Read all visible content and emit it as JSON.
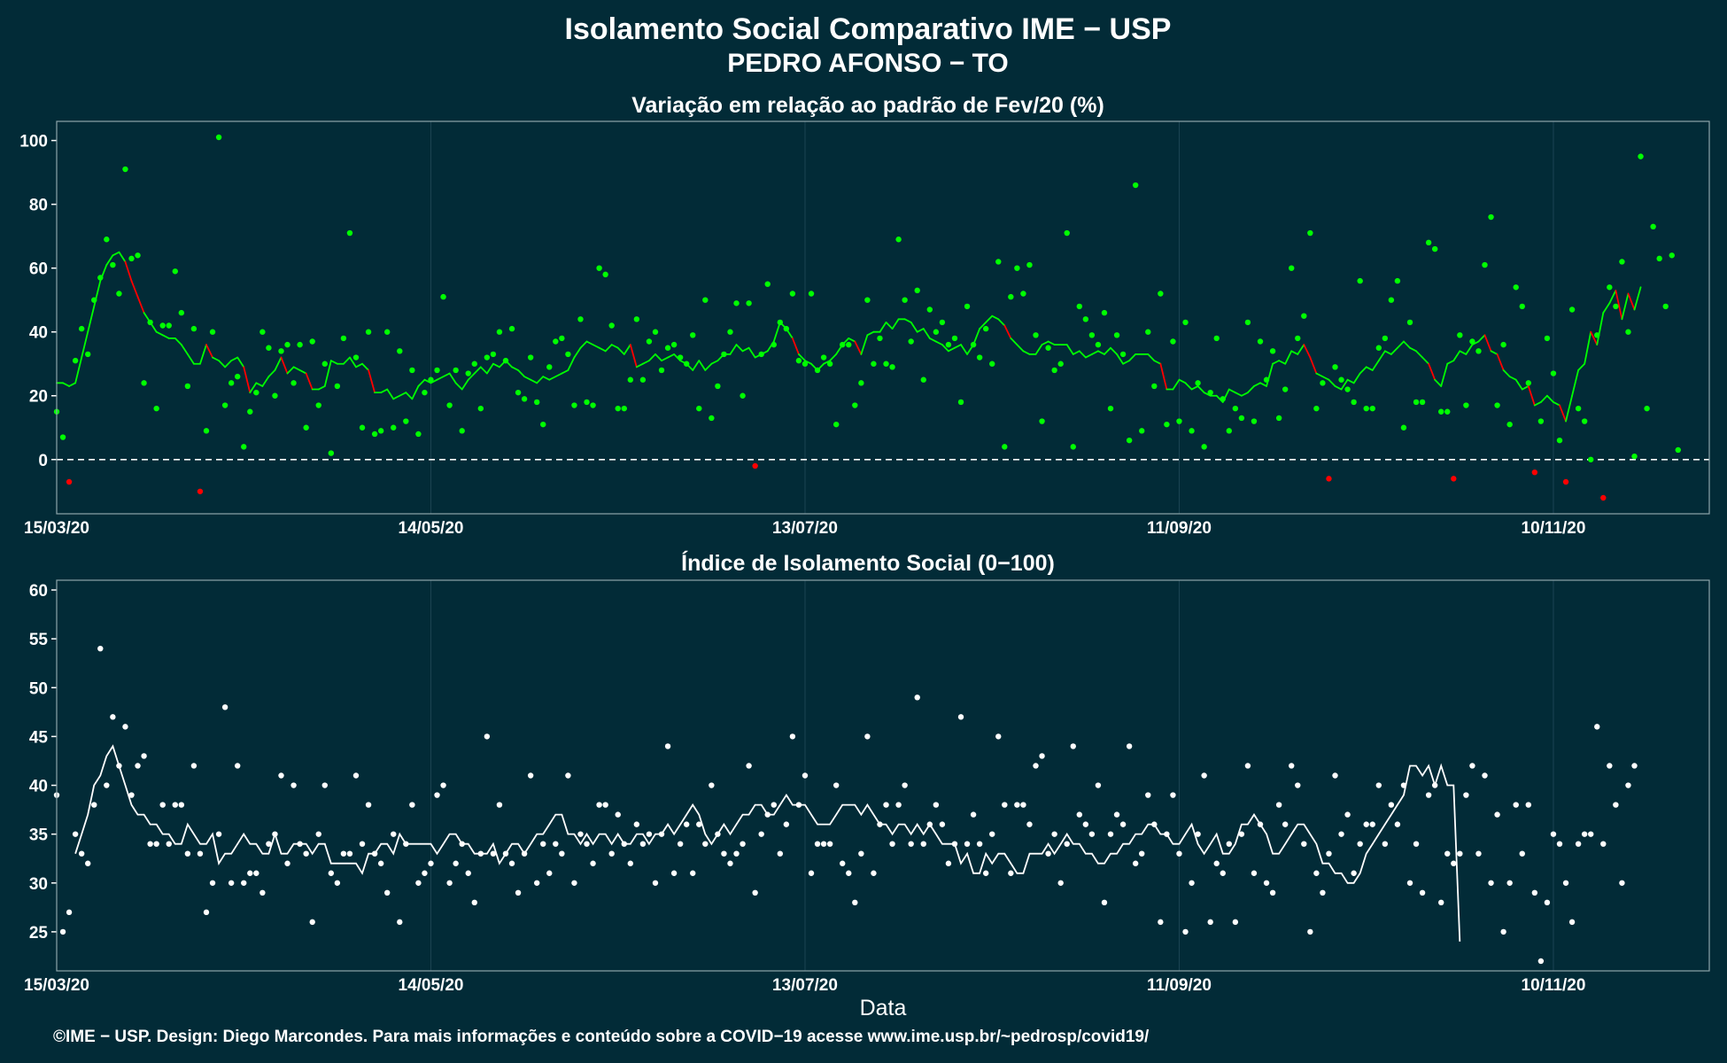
{
  "title_line1": "Isolamento Social Comparativo IME − USP",
  "title_line2": "PEDRO AFONSO − TO",
  "footer": "©IME − USP. Design: Diego Marcondes. Para mais informações e conteúdo sobre a COVID−19 acesse www.ime.usp.br/~pedrosp/covid19/",
  "colors": {
    "background": "#022b37",
    "panel_border": "#8fa5ab",
    "positive": "#00ff00",
    "negative": "#ff0000",
    "index": "#ffffff",
    "grid": "#1c4553"
  },
  "chart_data": [
    {
      "type": "scatter",
      "title": "Variação em relação ao padrão de Fev/20 (%)",
      "xlabel": "",
      "ylabel": "",
      "ylim": [
        -17,
        106
      ],
      "yticks": [
        0,
        20,
        40,
        60,
        80,
        100
      ],
      "xticks": [
        "15/03/20",
        "14/05/20",
        "13/07/20",
        "11/09/20",
        "10/11/20"
      ],
      "x_start": "2020-03-15",
      "x_end": "2020-12-05",
      "reference_line": 0,
      "legend": "none",
      "grid": true,
      "series": [
        {
          "style": "points",
          "x_start": "2020-03-15",
          "step_days": 1,
          "values": [
            15,
            7,
            -7,
            31,
            41,
            33,
            50,
            57,
            69,
            61,
            52,
            91,
            63,
            64,
            24,
            43,
            16,
            42,
            42,
            59,
            46,
            23,
            41,
            -10,
            9,
            40,
            101,
            17,
            24,
            26,
            4,
            15,
            21,
            40,
            35,
            20,
            34,
            36,
            24,
            36,
            10,
            37,
            17,
            30,
            2,
            23,
            38,
            71,
            32,
            10,
            40,
            8,
            9,
            40,
            10,
            34,
            12,
            28,
            8,
            21,
            25,
            28,
            51,
            17,
            28,
            9,
            27,
            30,
            16,
            32,
            33,
            40,
            31,
            41,
            21,
            19,
            32,
            18,
            11,
            29,
            37,
            38,
            33,
            17,
            44,
            18,
            17,
            60,
            58,
            42,
            16,
            16,
            25,
            44,
            25,
            37,
            40,
            28,
            35,
            36,
            32,
            30,
            39,
            16,
            50,
            13,
            23,
            33,
            40,
            49,
            20,
            49,
            -2,
            33,
            55,
            36,
            43,
            41,
            52,
            31,
            30,
            52,
            28,
            32,
            30,
            11,
            36,
            36,
            17,
            24,
            50,
            30,
            38,
            30,
            29,
            69,
            50,
            37,
            53,
            25,
            47,
            40,
            43,
            36,
            38,
            18,
            48,
            36,
            32,
            41,
            30,
            62,
            4,
            51,
            60,
            52,
            61,
            39,
            12,
            35,
            28,
            30,
            71,
            4,
            48,
            44,
            39,
            36,
            46,
            16,
            39,
            33,
            6,
            86,
            9,
            40,
            23,
            52,
            11,
            37,
            12,
            43,
            9,
            24,
            4,
            21,
            38,
            19,
            9,
            16,
            13,
            43,
            12,
            37,
            25,
            34,
            13,
            22,
            60,
            38,
            45,
            71,
            16,
            24,
            -6,
            29,
            25,
            22,
            18,
            56,
            16,
            16,
            35,
            38,
            50,
            56,
            10,
            43,
            18,
            18,
            68,
            66,
            15,
            15,
            -6,
            39,
            17,
            37,
            34,
            61,
            76,
            17,
            36,
            11,
            54,
            48,
            24,
            -4,
            12,
            38,
            27,
            6,
            -7,
            47,
            16,
            12,
            0,
            39,
            -12,
            54,
            48,
            62,
            40,
            1,
            95,
            16,
            73,
            63,
            48,
            64,
            3
          ]
        },
        {
          "style": "line",
          "name": "",
          "x_start": "2020-03-15",
          "step_days": 1,
          "values": [
            24,
            24,
            23,
            24,
            32,
            40,
            48,
            56,
            61,
            64,
            65,
            62,
            56,
            51,
            46,
            43,
            40,
            39,
            38,
            38,
            36,
            33,
            30,
            30,
            36,
            32,
            31,
            29,
            31,
            32,
            29,
            21,
            24,
            23,
            26,
            28,
            32,
            27,
            29,
            28,
            27,
            22,
            22,
            23,
            31,
            30,
            30,
            32,
            29,
            30,
            28,
            21,
            21,
            22,
            19,
            20,
            21,
            19,
            23,
            25,
            24,
            25,
            26,
            27,
            24,
            22,
            25,
            27,
            29,
            27,
            30,
            29,
            31,
            29,
            28,
            26,
            25,
            24,
            26,
            25,
            26,
            27,
            28,
            32,
            35,
            37,
            36,
            35,
            34,
            36,
            35,
            33,
            36,
            29,
            30,
            31,
            33,
            31,
            32,
            33,
            31,
            30,
            28,
            31,
            28,
            30,
            31,
            33,
            33,
            36,
            34,
            35,
            32,
            33,
            34,
            37,
            43,
            41,
            38,
            33,
            31,
            30,
            28,
            30,
            31,
            33,
            36,
            38,
            37,
            33,
            39,
            40,
            40,
            43,
            41,
            44,
            44,
            43,
            40,
            41,
            38,
            37,
            36,
            34,
            35,
            36,
            33,
            36,
            41,
            43,
            45,
            44,
            42,
            38,
            36,
            34,
            33,
            33,
            36,
            37,
            36,
            36,
            36,
            33,
            34,
            32,
            33,
            34,
            33,
            35,
            33,
            30,
            31,
            33,
            33,
            33,
            31,
            30,
            22,
            22,
            25,
            24,
            22,
            23,
            21,
            20,
            20,
            18,
            22,
            21,
            20,
            21,
            23,
            24,
            23,
            30,
            31,
            30,
            34,
            33,
            36,
            32,
            27,
            26,
            25,
            23,
            22,
            25,
            24,
            27,
            29,
            28,
            31,
            34,
            33,
            35,
            37,
            35,
            34,
            32,
            30,
            25,
            23,
            30,
            31,
            34,
            33,
            36,
            37,
            39,
            34,
            33,
            28,
            26,
            25,
            22,
            23,
            17,
            18,
            20,
            18,
            17,
            12,
            20,
            28,
            30,
            40,
            36,
            46,
            49,
            53,
            44,
            52,
            47,
            54
          ]
        }
      ]
    },
    {
      "type": "scatter",
      "title": "Índice de Isolamento Social (0−100)",
      "xlabel": "Data",
      "ylabel": "",
      "ylim": [
        21,
        61
      ],
      "yticks": [
        25,
        30,
        35,
        40,
        45,
        50,
        55,
        60
      ],
      "xticks": [
        "15/03/20",
        "14/05/20",
        "13/07/20",
        "11/09/20",
        "10/11/20"
      ],
      "x_start": "2020-03-15",
      "x_end": "2020-12-05",
      "legend": "none",
      "grid": true,
      "series": [
        {
          "style": "points",
          "x_start": "2020-03-15",
          "step_days": 1,
          "values": [
            39,
            25,
            27,
            35,
            33,
            32,
            38,
            54,
            40,
            47,
            42,
            46,
            39,
            42,
            43,
            34,
            34,
            38,
            34,
            38,
            38,
            33,
            42,
            33,
            27,
            30,
            35,
            48,
            30,
            42,
            30,
            31,
            31,
            29,
            34,
            35,
            41,
            32,
            40,
            34,
            33,
            26,
            35,
            40,
            31,
            30,
            33,
            33,
            41,
            34,
            38,
            33,
            32,
            29,
            35,
            26,
            34,
            38,
            30,
            31,
            32,
            39,
            40,
            30,
            32,
            34,
            31,
            28,
            33,
            45,
            33,
            38,
            33,
            32,
            29,
            33,
            41,
            30,
            34,
            31,
            34,
            33,
            41,
            30,
            35,
            34,
            32,
            38,
            38,
            33,
            37,
            34,
            32,
            36,
            34,
            35,
            30,
            35,
            44,
            31,
            34,
            36,
            31,
            36,
            34,
            40,
            35,
            33,
            32,
            33,
            34,
            42,
            29,
            35,
            37,
            38,
            33,
            36,
            45,
            38,
            41,
            31,
            34,
            34,
            34,
            40,
            32,
            31,
            28,
            33,
            45,
            31,
            36,
            38,
            34,
            38,
            40,
            34,
            49,
            34,
            36,
            38,
            36,
            32,
            34,
            47,
            34,
            37,
            34,
            31,
            35,
            45,
            38,
            31,
            38,
            38,
            36,
            42,
            43,
            33,
            35,
            30,
            34,
            44,
            37,
            36,
            35,
            40,
            28,
            35,
            37,
            36,
            44,
            32,
            33,
            39,
            36,
            26,
            35,
            39,
            33,
            25,
            30,
            35,
            41,
            26,
            32,
            31,
            34,
            26,
            35,
            42,
            31,
            36,
            30,
            29,
            38,
            36,
            42,
            40,
            34,
            25,
            31,
            29,
            33,
            41,
            35,
            37,
            31,
            34,
            36,
            36,
            40,
            34,
            38,
            36,
            40,
            30,
            34,
            29,
            39,
            40,
            28,
            33,
            32,
            33,
            39,
            42,
            33,
            41,
            30,
            37,
            25,
            30,
            38,
            33,
            38,
            29,
            22,
            28,
            35,
            34,
            30,
            26,
            34,
            35,
            35,
            46,
            34,
            42,
            38,
            30,
            40,
            42
          ]
        },
        {
          "style": "line",
          "name": "",
          "x_start": "2020-03-18",
          "step_days": 1,
          "values": [
            33,
            35,
            37,
            40,
            41,
            43,
            44,
            42,
            40,
            38,
            37,
            37,
            36,
            36,
            35,
            35,
            34,
            34,
            36,
            35,
            34,
            34,
            35,
            32,
            33,
            33,
            34,
            35,
            34,
            34,
            33,
            33,
            35,
            33,
            33,
            34,
            34,
            34,
            33,
            34,
            34,
            32,
            32,
            32,
            32,
            32,
            31,
            33,
            33,
            34,
            34,
            33,
            35,
            34,
            34,
            34,
            34,
            34,
            33,
            34,
            35,
            35,
            34,
            34,
            33,
            33,
            33,
            34,
            32,
            33,
            34,
            34,
            33,
            34,
            35,
            35,
            36,
            37,
            37,
            35,
            35,
            34,
            35,
            34,
            35,
            35,
            34,
            35,
            34,
            34,
            35,
            35,
            34,
            35,
            35,
            36,
            35,
            36,
            37,
            38,
            37,
            35,
            34,
            35,
            36,
            35,
            36,
            37,
            37,
            38,
            38,
            37,
            37,
            38,
            39,
            38,
            38,
            38,
            37,
            36,
            36,
            36,
            37,
            38,
            38,
            38,
            37,
            38,
            37,
            36,
            36,
            35,
            36,
            36,
            35,
            36,
            35,
            36,
            35,
            34,
            34,
            34,
            32,
            33,
            31,
            31,
            33,
            32,
            33,
            33,
            32,
            31,
            31,
            33,
            33,
            33,
            34,
            33,
            34,
            35,
            34,
            34,
            33,
            33,
            32,
            32,
            33,
            33,
            34,
            34,
            35,
            35,
            36,
            36,
            35,
            35,
            34,
            34,
            35,
            36,
            34,
            33,
            34,
            35,
            33,
            33,
            34,
            36,
            36,
            37,
            36,
            35,
            33,
            33,
            34,
            35,
            36,
            36,
            35,
            34,
            32,
            32,
            31,
            31,
            30,
            30,
            31,
            33,
            34,
            35,
            36,
            37,
            38,
            39,
            42,
            42,
            41,
            42,
            40,
            42,
            40,
            40,
            24
          ]
        }
      ]
    }
  ]
}
